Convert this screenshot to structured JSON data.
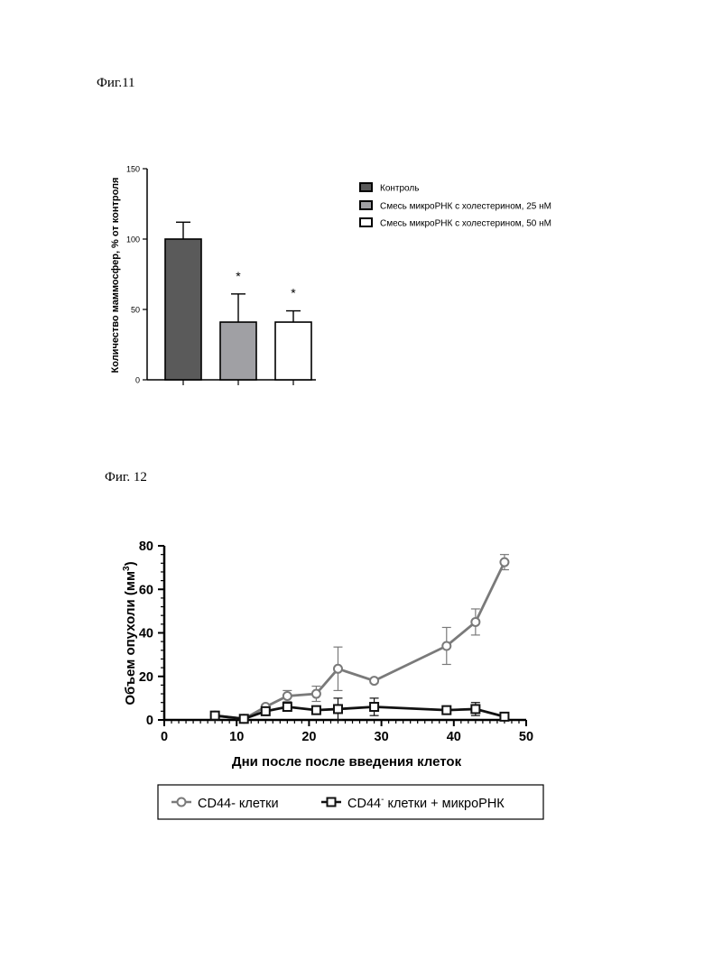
{
  "figures": {
    "fig11_label": "Фиг.11",
    "fig12_label": "Фиг. 12"
  },
  "colors": {
    "control": "#5a5a5a",
    "mix25": "#a0a0a4",
    "mix50": "#ffffff",
    "cd44_line": "#7a7a7a",
    "mirna_line": "#111111"
  },
  "chart_data": [
    {
      "type": "bar",
      "title": "",
      "xlabel": "",
      "ylabel": "Количество маммосфер, % от контроля",
      "ylim": [
        0,
        150
      ],
      "yticks": [
        "0",
        "50",
        "100",
        "150"
      ],
      "categories": [
        "Контроль",
        "Смесь микроРНК с холестерином, 25 нМ",
        "Смесь микроРНК с холестерином, 50 нМ"
      ],
      "values": [
        100,
        41,
        41
      ],
      "errors": [
        12,
        20,
        8
      ],
      "significance": [
        "",
        "*",
        "*"
      ],
      "legend_position": "right"
    },
    {
      "type": "line",
      "title": "",
      "xlabel": "Дни после после введения клеток",
      "ylabel_main": "Объем опухоли (мм",
      "ylabel_sup": "3",
      "ylabel_end": ")",
      "xlim": [
        0,
        50
      ],
      "ylim": [
        0,
        80
      ],
      "xticks": [
        "0",
        "10",
        "20",
        "30",
        "40",
        "50"
      ],
      "yticks": [
        "0",
        "20",
        "40",
        "60",
        "80"
      ],
      "legend_position": "bottom",
      "series": [
        {
          "name": "CD44- клетки",
          "marker": "circle",
          "x": [
            7,
            11,
            14,
            17,
            21,
            24,
            29,
            39,
            43,
            47
          ],
          "y": [
            2,
            0.5,
            6,
            11,
            12,
            23.5,
            18,
            34,
            45,
            72.5
          ],
          "err": [
            0.5,
            0.5,
            1,
            2.5,
            3.5,
            10,
            1,
            8.5,
            6,
            3.5
          ]
        },
        {
          "name_main": "CD44",
          "name_sup": "-",
          "name_end": " клетки + микроРНК",
          "marker": "square",
          "x": [
            7,
            11,
            14,
            17,
            21,
            24,
            29,
            39,
            43,
            47
          ],
          "y": [
            2,
            0.5,
            4,
            6,
            4.5,
            5,
            6,
            4.5,
            5,
            1.5
          ],
          "err": [
            0.3,
            0.3,
            1,
            1.5,
            1.5,
            5,
            4,
            1,
            3,
            0.3
          ]
        }
      ]
    }
  ]
}
